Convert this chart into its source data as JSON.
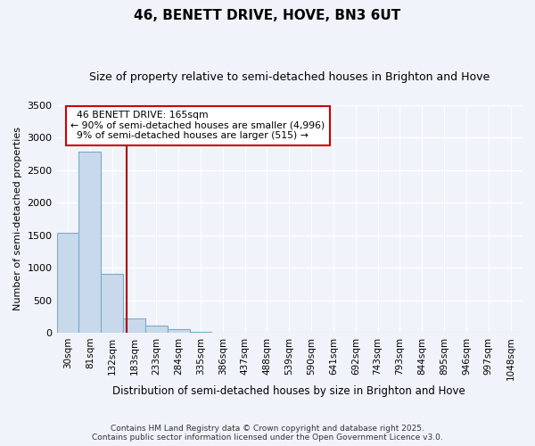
{
  "title1": "46, BENETT DRIVE, HOVE, BN3 6UT",
  "title2": "Size of property relative to semi-detached houses in Brighton and Hove",
  "xlabel": "Distribution of semi-detached houses by size in Brighton and Hove",
  "ylabel": "Number of semi-detached properties",
  "bar_labels": [
    "30sqm",
    "81sqm",
    "132sqm",
    "183sqm",
    "233sqm",
    "284sqm",
    "335sqm",
    "386sqm",
    "437sqm",
    "488sqm",
    "539sqm",
    "590sqm",
    "641sqm",
    "692sqm",
    "743sqm",
    "793sqm",
    "844sqm",
    "895sqm",
    "946sqm",
    "997sqm",
    "1048sqm"
  ],
  "bar_values": [
    1540,
    2780,
    900,
    215,
    105,
    55,
    20,
    5,
    0,
    0,
    0,
    0,
    0,
    0,
    0,
    0,
    0,
    0,
    0,
    0,
    0
  ],
  "bar_color": "#c9d9ec",
  "bar_edge_color": "#7aaac8",
  "property_size": 165,
  "property_label": "46 BENETT DRIVE: 165sqm",
  "pct_smaller": 90,
  "n_smaller": 4996,
  "pct_larger": 9,
  "n_larger": 515,
  "vline_color": "#aa0000",
  "annotation_box_color": "#cc0000",
  "ylim": [
    0,
    3500
  ],
  "yticks": [
    0,
    500,
    1000,
    1500,
    2000,
    2500,
    3000,
    3500
  ],
  "bg_color": "#f0f4fa",
  "footer1": "Contains HM Land Registry data © Crown copyright and database right 2025.",
  "footer2": "Contains public sector information licensed under the Open Government Licence v3.0."
}
